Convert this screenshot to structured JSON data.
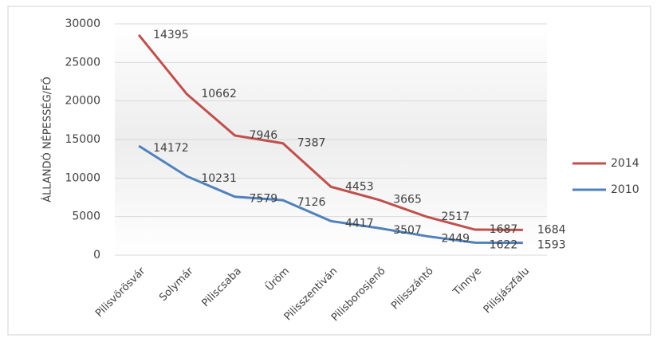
{
  "chart_data": {
    "type": "line",
    "stacked": true,
    "y_label": "ÁLLANDÓ NÉPESSÉG/FŐ",
    "categories": [
      "Pilisvörösvár",
      "Solymár",
      "Piliscsaba",
      "Üröm",
      "Pilisszentiván",
      "Pilisborosjenő",
      "Pilisszántó",
      "Tinnye",
      "Pilisjászfalu"
    ],
    "series": [
      {
        "name": "2010",
        "color": "#4f81bd",
        "values": [
          14172,
          10231,
          7579,
          7126,
          4417,
          3507,
          2449,
          1622,
          1593
        ]
      },
      {
        "name": "2014",
        "color": "#c0504d",
        "values": [
          14395,
          10662,
          7946,
          7387,
          4453,
          3665,
          2517,
          1687,
          1684
        ]
      }
    ],
    "ylim": [
      0,
      30000
    ],
    "yticks": [
      0,
      5000,
      10000,
      15000,
      20000,
      25000,
      30000
    ],
    "grid": true,
    "legend": "right"
  }
}
